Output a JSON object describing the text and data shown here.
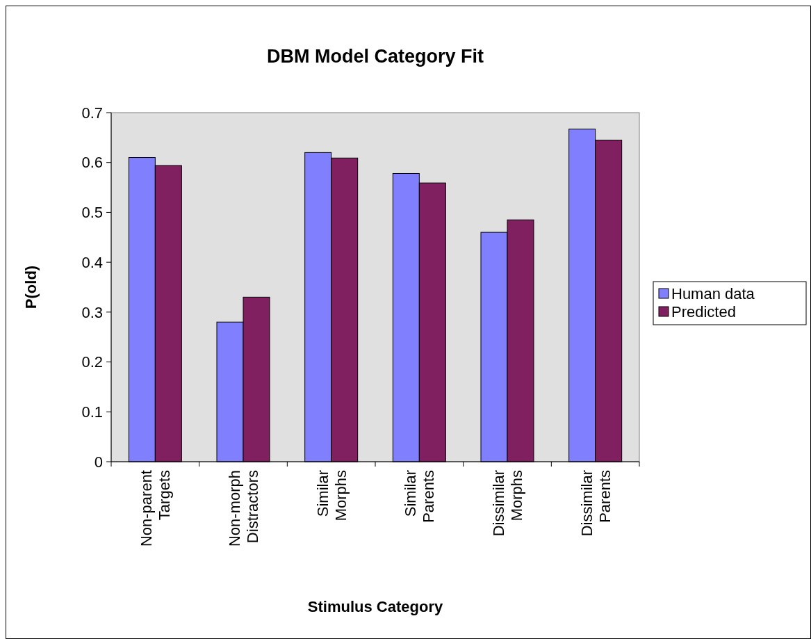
{
  "chart_data": {
    "type": "bar",
    "title": "DBM Model Category Fit",
    "xlabel": "Stimulus Category",
    "ylabel": "P(old)",
    "categories": [
      "Non-parent Targets",
      "Non-morph Distractors",
      "Similar Morphs",
      "Similar Parents",
      "Dissimilar Morphs",
      "Dissimilar Parents"
    ],
    "series": [
      {
        "name": "Human data",
        "color": "#8080ff",
        "values": [
          0.61,
          0.28,
          0.62,
          0.578,
          0.46,
          0.667
        ]
      },
      {
        "name": "Predicted",
        "color": "#802060",
        "values": [
          0.594,
          0.33,
          0.609,
          0.559,
          0.485,
          0.645
        ]
      }
    ],
    "ylim": [
      0,
      0.7
    ],
    "yticks": [
      0,
      0.1,
      0.2,
      0.3,
      0.4,
      0.5,
      0.6,
      0.7
    ],
    "grid": false,
    "legend": "right"
  }
}
